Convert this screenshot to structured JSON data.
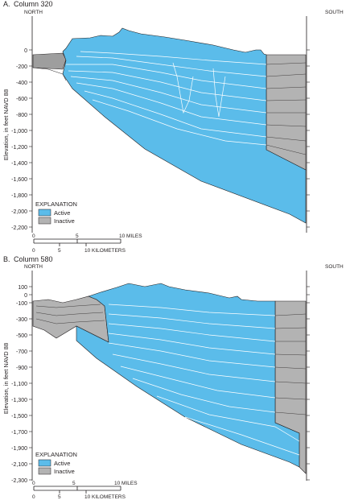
{
  "colors": {
    "active": "#5bbcea",
    "inactive": "#b3b3b3",
    "line": "#231f20",
    "layer": "#ffffff"
  },
  "ylabel": "Elevation, in feet NAVD 88",
  "panelA": {
    "label": "A.",
    "title": "Column 320",
    "north": "NORTH",
    "south": "SOUTH",
    "yticks": [
      "0",
      "-200",
      "-400",
      "-600",
      "-800",
      "-1,000",
      "-1,200",
      "-1,400",
      "-1,600",
      "-1,800",
      "-2,000",
      "-2,200"
    ],
    "explanation": "EXPLANATION",
    "legend_active": "Active",
    "legend_inactive": "Inactive",
    "scale_miles_ticks": [
      "0",
      "5",
      "10 MILES"
    ],
    "scale_km_ticks": [
      "0",
      "5",
      "10 KILOMETERS"
    ]
  },
  "panelB": {
    "label": "B.",
    "title": "Column 580",
    "north": "NORTH",
    "south": "SOUTH",
    "yticks": [
      "100",
      "0",
      "-100",
      "-300",
      "-500",
      "-700",
      "-900",
      "-1,100",
      "-1,300",
      "-1,500",
      "-1,700",
      "-1,900",
      "-2,100",
      "-2,300"
    ],
    "explanation": "EXPLANATION",
    "legend_active": "Active",
    "legend_inactive": "Inactive",
    "scale_miles_ticks": [
      "0",
      "5",
      "10 MILES"
    ],
    "scale_km_ticks": [
      "0",
      "5",
      "10 KILOMETERS"
    ]
  }
}
